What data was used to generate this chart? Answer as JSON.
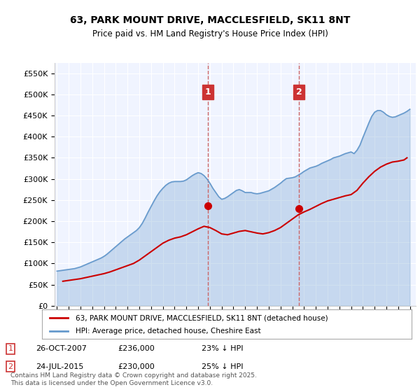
{
  "title": "63, PARK MOUNT DRIVE, MACCLESFIELD, SK11 8NT",
  "subtitle": "Price paid vs. HM Land Registry's House Price Index (HPI)",
  "ylabel_ticks": [
    "£0",
    "£50K",
    "£100K",
    "£150K",
    "£200K",
    "£250K",
    "£300K",
    "£350K",
    "£400K",
    "£450K",
    "£500K",
    "£550K"
  ],
  "ytick_values": [
    0,
    50000,
    100000,
    150000,
    200000,
    250000,
    300000,
    350000,
    400000,
    450000,
    500000,
    550000
  ],
  "ylim": [
    0,
    575000
  ],
  "legend_property": "63, PARK MOUNT DRIVE, MACCLESFIELD, SK11 8NT (detached house)",
  "legend_hpi": "HPI: Average price, detached house, Cheshire East",
  "marker1_date": "26-OCT-2007",
  "marker1_price": 236000,
  "marker1_pct": "23% ↓ HPI",
  "marker2_date": "24-JUL-2015",
  "marker2_price": 230000,
  "marker2_pct": "25% ↓ HPI",
  "footer": "Contains HM Land Registry data © Crown copyright and database right 2025.\nThis data is licensed under the Open Government Licence v3.0.",
  "property_color": "#cc0000",
  "hpi_color": "#6699cc",
  "marker_color": "#cc0000",
  "vline_color": "#cc6666",
  "background_color": "#f0f4ff",
  "annotation_box_color": "#cc3333",
  "grid_color": "#ffffff",
  "hpi_data": {
    "years": [
      1995.0,
      1995.25,
      1995.5,
      1995.75,
      1996.0,
      1996.25,
      1996.5,
      1996.75,
      1997.0,
      1997.25,
      1997.5,
      1997.75,
      1998.0,
      1998.25,
      1998.5,
      1998.75,
      1999.0,
      1999.25,
      1999.5,
      1999.75,
      2000.0,
      2000.25,
      2000.5,
      2000.75,
      2001.0,
      2001.25,
      2001.5,
      2001.75,
      2002.0,
      2002.25,
      2002.5,
      2002.75,
      2003.0,
      2003.25,
      2003.5,
      2003.75,
      2004.0,
      2004.25,
      2004.5,
      2004.75,
      2005.0,
      2005.25,
      2005.5,
      2005.75,
      2006.0,
      2006.25,
      2006.5,
      2006.75,
      2007.0,
      2007.25,
      2007.5,
      2007.75,
      2008.0,
      2008.25,
      2008.5,
      2008.75,
      2009.0,
      2009.25,
      2009.5,
      2009.75,
      2010.0,
      2010.25,
      2010.5,
      2010.75,
      2011.0,
      2011.25,
      2011.5,
      2011.75,
      2012.0,
      2012.25,
      2012.5,
      2012.75,
      2013.0,
      2013.25,
      2013.5,
      2013.75,
      2014.0,
      2014.25,
      2014.5,
      2014.75,
      2015.0,
      2015.25,
      2015.5,
      2015.75,
      2016.0,
      2016.25,
      2016.5,
      2016.75,
      2017.0,
      2017.25,
      2017.5,
      2017.75,
      2018.0,
      2018.25,
      2018.5,
      2018.75,
      2019.0,
      2019.25,
      2019.5,
      2019.75,
      2020.0,
      2020.25,
      2020.5,
      2020.75,
      2021.0,
      2021.25,
      2021.5,
      2021.75,
      2022.0,
      2022.25,
      2022.5,
      2022.75,
      2023.0,
      2023.25,
      2023.5,
      2023.75,
      2024.0,
      2024.25,
      2024.5,
      2024.75,
      2025.0
    ],
    "values": [
      82000,
      83000,
      84000,
      85000,
      86000,
      87000,
      88000,
      90000,
      92000,
      95000,
      98000,
      101000,
      104000,
      107000,
      110000,
      113000,
      117000,
      122000,
      128000,
      134000,
      140000,
      146000,
      152000,
      158000,
      163000,
      168000,
      173000,
      178000,
      185000,
      195000,
      208000,
      222000,
      235000,
      248000,
      260000,
      270000,
      278000,
      285000,
      290000,
      293000,
      294000,
      294000,
      294000,
      295000,
      298000,
      303000,
      308000,
      312000,
      315000,
      313000,
      308000,
      300000,
      290000,
      278000,
      268000,
      258000,
      252000,
      254000,
      258000,
      263000,
      268000,
      273000,
      275000,
      272000,
      268000,
      268000,
      268000,
      266000,
      265000,
      266000,
      268000,
      270000,
      272000,
      276000,
      280000,
      285000,
      290000,
      296000,
      301000,
      302000,
      303000,
      305000,
      309000,
      313000,
      318000,
      322000,
      326000,
      328000,
      330000,
      333000,
      337000,
      340000,
      343000,
      346000,
      350000,
      352000,
      354000,
      357000,
      360000,
      362000,
      364000,
      360000,
      368000,
      380000,
      398000,
      415000,
      432000,
      448000,
      458000,
      462000,
      462000,
      458000,
      452000,
      448000,
      446000,
      447000,
      450000,
      453000,
      456000,
      460000,
      465000
    ]
  },
  "property_data": {
    "years": [
      1995.5,
      1996.0,
      1996.5,
      1997.0,
      1997.5,
      1998.0,
      1998.5,
      1999.0,
      1999.5,
      2000.0,
      2000.5,
      2001.0,
      2001.5,
      2002.0,
      2002.5,
      2003.0,
      2003.5,
      2004.0,
      2004.5,
      2005.0,
      2005.5,
      2006.0,
      2006.5,
      2007.0,
      2007.5,
      2008.0,
      2008.5,
      2009.0,
      2009.5,
      2010.0,
      2010.5,
      2011.0,
      2011.5,
      2012.0,
      2012.5,
      2013.0,
      2013.5,
      2014.0,
      2014.5,
      2015.0,
      2015.5,
      2016.0,
      2016.5,
      2017.0,
      2017.5,
      2018.0,
      2018.5,
      2019.0,
      2019.5,
      2020.0,
      2020.5,
      2021.0,
      2021.5,
      2022.0,
      2022.5,
      2023.0,
      2023.5,
      2024.0,
      2024.5,
      2024.75
    ],
    "values": [
      58000,
      60000,
      62000,
      64000,
      67000,
      70000,
      73000,
      76000,
      80000,
      85000,
      90000,
      95000,
      100000,
      108000,
      118000,
      128000,
      138000,
      148000,
      155000,
      160000,
      163000,
      168000,
      175000,
      182000,
      188000,
      185000,
      178000,
      170000,
      168000,
      172000,
      176000,
      178000,
      175000,
      172000,
      170000,
      173000,
      178000,
      185000,
      195000,
      205000,
      215000,
      222000,
      228000,
      235000,
      242000,
      248000,
      252000,
      256000,
      260000,
      263000,
      273000,
      290000,
      305000,
      318000,
      328000,
      335000,
      340000,
      342000,
      345000,
      350000
    ]
  },
  "sale1_year": 2007.82,
  "sale1_price": 236000,
  "sale2_year": 2015.56,
  "sale2_price": 230000,
  "vline1_year": 2007.82,
  "vline2_year": 2015.56
}
